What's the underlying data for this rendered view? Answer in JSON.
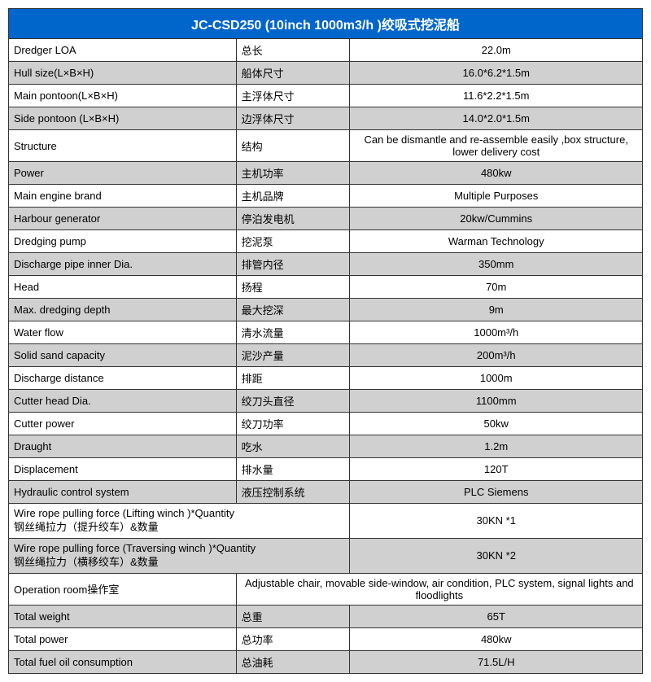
{
  "title": "JC-CSD250 (10inch 1000m3/h )绞吸式挖泥船",
  "colors": {
    "header_bg": "#0066cc",
    "header_text": "#ffffff",
    "grey_bg": "#d0d0d0",
    "white_bg": "#ffffff",
    "border": "#333333"
  },
  "rows": [
    {
      "en": "Dredger LOA",
      "cn": "总长",
      "val": "22.0m",
      "bg": "white"
    },
    {
      "en": "Hull size(L×B×H)",
      "cn": "船体尺寸",
      "val": "16.0*6.2*1.5m",
      "bg": "grey"
    },
    {
      "en": "Main pontoon(L×B×H)",
      "cn": "主浮体尺寸",
      "val": "11.6*2.2*1.5m",
      "bg": "white"
    },
    {
      "en": "Side pontoon (L×B×H)",
      "cn": "边浮体尺寸",
      "val": "14.0*2.0*1.5m",
      "bg": "grey"
    },
    {
      "en": "Structure",
      "cn": "结构",
      "val": "Can be dismantle and re-assemble easily ,box structure, lower delivery cost",
      "bg": "white"
    },
    {
      "en": "Power",
      "cn": "主机功率",
      "val": "480kw",
      "bg": "grey"
    },
    {
      "en": "Main engine brand",
      "cn": "主机品牌",
      "val": "Multiple Purposes",
      "bg": "white"
    },
    {
      "en": "Harbour generator",
      "cn": "停泊发电机",
      "val": "20kw/Cummins",
      "bg": "grey"
    },
    {
      "en": "Dredging pump",
      "cn": "挖泥泵",
      "val": "Warman Technology",
      "bg": "white"
    },
    {
      "en": "Discharge pipe inner Dia.",
      "cn": "排管内径",
      "val": "350mm",
      "bg": "grey"
    },
    {
      "en": "Head",
      "cn": "扬程",
      "val": "70m",
      "bg": "white"
    },
    {
      "en": "Max. dredging depth",
      "cn": "最大挖深",
      "val": "9m",
      "bg": "grey"
    },
    {
      "en": "Water flow",
      "cn": "清水流量",
      "val": "1000m³/h",
      "bg": "white"
    },
    {
      "en": "Solid sand capacity",
      "cn": "泥沙产量",
      "val": "200m³/h",
      "bg": "grey"
    },
    {
      "en": "Discharge distance",
      "cn": "排距",
      "val": "1000m",
      "bg": "white"
    },
    {
      "en": "Cutter head Dia.",
      "cn": "绞刀头直径",
      "val": "1100mm",
      "bg": "grey"
    },
    {
      "en": "Cutter power",
      "cn": "绞刀功率",
      "val": "50kw",
      "bg": "white"
    },
    {
      "en": "Draught",
      "cn": "吃水",
      "val": "1.2m",
      "bg": "grey"
    },
    {
      "en": "Displacement",
      "cn": "排水量",
      "val": "120T",
      "bg": "white"
    },
    {
      "en": "Hydraulic control system",
      "cn": "液压控制系统",
      "val": "PLC Siemens",
      "bg": "grey"
    }
  ],
  "wire1": {
    "label_en": "Wire rope pulling force (Lifting winch )*Quantity",
    "label_cn": "钢丝绳拉力（提升绞车）&数量",
    "val": "30KN  *1",
    "bg": "white"
  },
  "wire2": {
    "label_en": "Wire rope pulling force (Traversing winch )*Quantity",
    "label_cn": "钢丝绳拉力（横移绞车）&数量",
    "val": "30KN  *2",
    "bg": "grey"
  },
  "operation": {
    "label": "Operation room操作室",
    "val": "Adjustable chair, movable side-window, air condition, PLC system, signal lights and floodlights",
    "bg": "white"
  },
  "footer": [
    {
      "en": "Total weight",
      "cn": "总重",
      "val": "65T",
      "bg": "grey"
    },
    {
      "en": "Total power",
      "cn": "总功率",
      "val": "480kw",
      "bg": "white"
    },
    {
      "en": "Total fuel oil consumption",
      "cn": "总油耗",
      "val": "71.5L/H",
      "bg": "grey"
    }
  ]
}
